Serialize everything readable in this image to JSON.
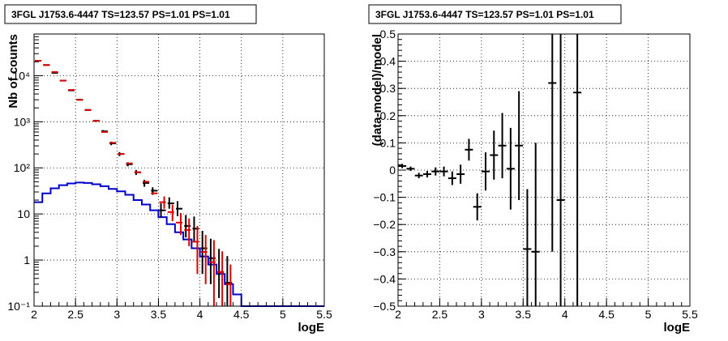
{
  "chart_data": [
    {
      "type": "line",
      "panel": "left",
      "title": "3FGL J1753.6-4447 TS=123.57 PS=1.01 PS=1.01",
      "xlabel": "logE",
      "ylabel": "Nb of counts",
      "xlim": [
        2,
        5.5
      ],
      "ylim": [
        0.1,
        80000
      ],
      "yscale": "log",
      "grid": true,
      "x_ticks": [
        "2",
        "2.5",
        "3",
        "3.5",
        "4",
        "4.5",
        "5",
        "5.5"
      ],
      "y_ticks": [
        "10⁻¹",
        "1",
        "10",
        "10²",
        "10³",
        "10⁴"
      ],
      "y_tick_values": [
        0.1,
        1,
        10,
        100,
        1000,
        10000
      ],
      "colors": {
        "data": "#000000",
        "model": "#dd0000",
        "source": "#0000cc"
      },
      "series": [
        {
          "role": "data",
          "color": "#000000",
          "x": [
            2.05,
            2.15,
            2.25,
            2.35,
            2.45,
            2.55,
            2.65,
            2.75,
            2.85,
            2.95,
            3.05,
            3.15,
            3.25,
            3.35,
            3.45,
            3.55,
            3.65,
            3.75,
            3.85,
            3.95,
            4.05,
            4.15,
            4.25,
            4.35
          ],
          "y": [
            21000,
            17000,
            11500,
            7800,
            4800,
            3000,
            1800,
            1050,
            620,
            340,
            200,
            120,
            80,
            47,
            32,
            12,
            17,
            13,
            5.5,
            4.8,
            1.8,
            1.1,
            0.55,
            0.32
          ],
          "err_low": [
            500,
            400,
            300,
            200,
            150,
            100,
            70,
            50,
            40,
            30,
            20,
            12,
            10,
            8,
            6,
            3.5,
            4,
            4,
            2.4,
            2.2,
            1.3,
            0.8,
            0.4,
            0.25
          ],
          "err_high": [
            500,
            400,
            300,
            200,
            150,
            100,
            70,
            50,
            40,
            30,
            20,
            12,
            10,
            8,
            6,
            5,
            6,
            6,
            4,
            4,
            2.5,
            1.8,
            1.2,
            0.9
          ]
        },
        {
          "role": "model",
          "color": "#dd0000",
          "x": [
            2.05,
            2.15,
            2.25,
            2.35,
            2.45,
            2.55,
            2.65,
            2.75,
            2.85,
            2.95,
            3.05,
            3.15,
            3.25,
            3.35,
            3.45,
            3.55,
            3.65,
            3.75,
            3.85,
            3.95,
            4.05,
            4.15,
            4.25,
            4.35
          ],
          "y": [
            21000,
            17000,
            12000,
            7800,
            4900,
            3000,
            1800,
            1050,
            600,
            350,
            200,
            125,
            80,
            50,
            28,
            18,
            11,
            6.5,
            4.5,
            2.5,
            1.5,
            0.9,
            0.55,
            0.3
          ],
          "err_low": [
            0,
            0,
            0,
            0,
            0,
            0,
            0,
            0,
            0,
            0,
            0,
            0,
            0,
            0,
            0,
            5,
            4,
            3,
            2.5,
            2,
            1.2,
            0.8,
            0.5,
            0.28
          ],
          "err_high": [
            0,
            0,
            0,
            0,
            0,
            0,
            0,
            0,
            0,
            0,
            0,
            0,
            0,
            0,
            0,
            6,
            5,
            4,
            3.5,
            3,
            2,
            1.8,
            1,
            0.5
          ]
        },
        {
          "role": "source-model",
          "color": "#0000cc",
          "edges": [
            2.0,
            2.1,
            2.2,
            2.3,
            2.4,
            2.5,
            2.6,
            2.7,
            2.8,
            2.9,
            3.0,
            3.1,
            3.2,
            3.3,
            3.4,
            3.5,
            3.6,
            3.7,
            3.8,
            3.9,
            4.0,
            4.1,
            4.2,
            4.3,
            4.4,
            4.5,
            4.6,
            4.7,
            4.8,
            4.9,
            5.0,
            5.1,
            5.2,
            5.3,
            5.4,
            5.5
          ],
          "values": [
            18,
            28,
            36,
            42,
            46,
            48,
            47,
            44,
            40,
            35,
            31,
            26,
            20,
            16,
            12,
            8.5,
            6,
            4,
            2.8,
            1.8,
            1.2,
            0.8,
            0.5,
            0.3,
            0.18,
            0.1,
            0.1,
            0.1,
            0.1,
            0.1,
            0.1,
            0.1,
            0.1,
            0.1,
            0.1
          ]
        }
      ]
    },
    {
      "type": "scatter",
      "panel": "right",
      "title": "3FGL J1753.6-4447 TS=123.57 PS=1.01 PS=1.01",
      "xlabel": "logE",
      "ylabel": "(data-model)/model",
      "xlim": [
        2,
        5.5
      ],
      "ylim": [
        -0.5,
        0.5
      ],
      "grid": true,
      "x_ticks": [
        "2",
        "2.5",
        "3",
        "3.5",
        "4",
        "4.5",
        "5",
        "5.5"
      ],
      "y_ticks": [
        "−0.5",
        "−0.4",
        "−0.3",
        "−0.2",
        "−0.1",
        "0",
        "0.1",
        "0.2",
        "0.3",
        "0.4",
        "0.5"
      ],
      "y_tick_values": [
        -0.5,
        -0.4,
        -0.3,
        -0.2,
        -0.1,
        0,
        0.1,
        0.2,
        0.3,
        0.4,
        0.5
      ],
      "series": [
        {
          "role": "residuals",
          "color": "#000000",
          "x": [
            2.05,
            2.15,
            2.25,
            2.35,
            2.45,
            2.55,
            2.65,
            2.75,
            2.85,
            2.95,
            3.05,
            3.15,
            3.25,
            3.35,
            3.45,
            3.55,
            3.65,
            3.85,
            3.95,
            4.15
          ],
          "y": [
            0.015,
            0.005,
            -0.02,
            -0.015,
            -0.005,
            -0.005,
            -0.03,
            -0.015,
            0.075,
            -0.135,
            -0.005,
            0.055,
            0.09,
            0.005,
            0.09,
            -0.29,
            -0.3,
            0.32,
            -0.11,
            0.285
          ],
          "err": [
            0.008,
            0.008,
            0.01,
            0.012,
            0.015,
            0.018,
            0.025,
            0.035,
            0.04,
            0.05,
            0.07,
            0.09,
            0.12,
            0.15,
            0.2,
            0.22,
            0.4,
            0.62,
            0.8,
            0.9
          ]
        }
      ]
    }
  ]
}
